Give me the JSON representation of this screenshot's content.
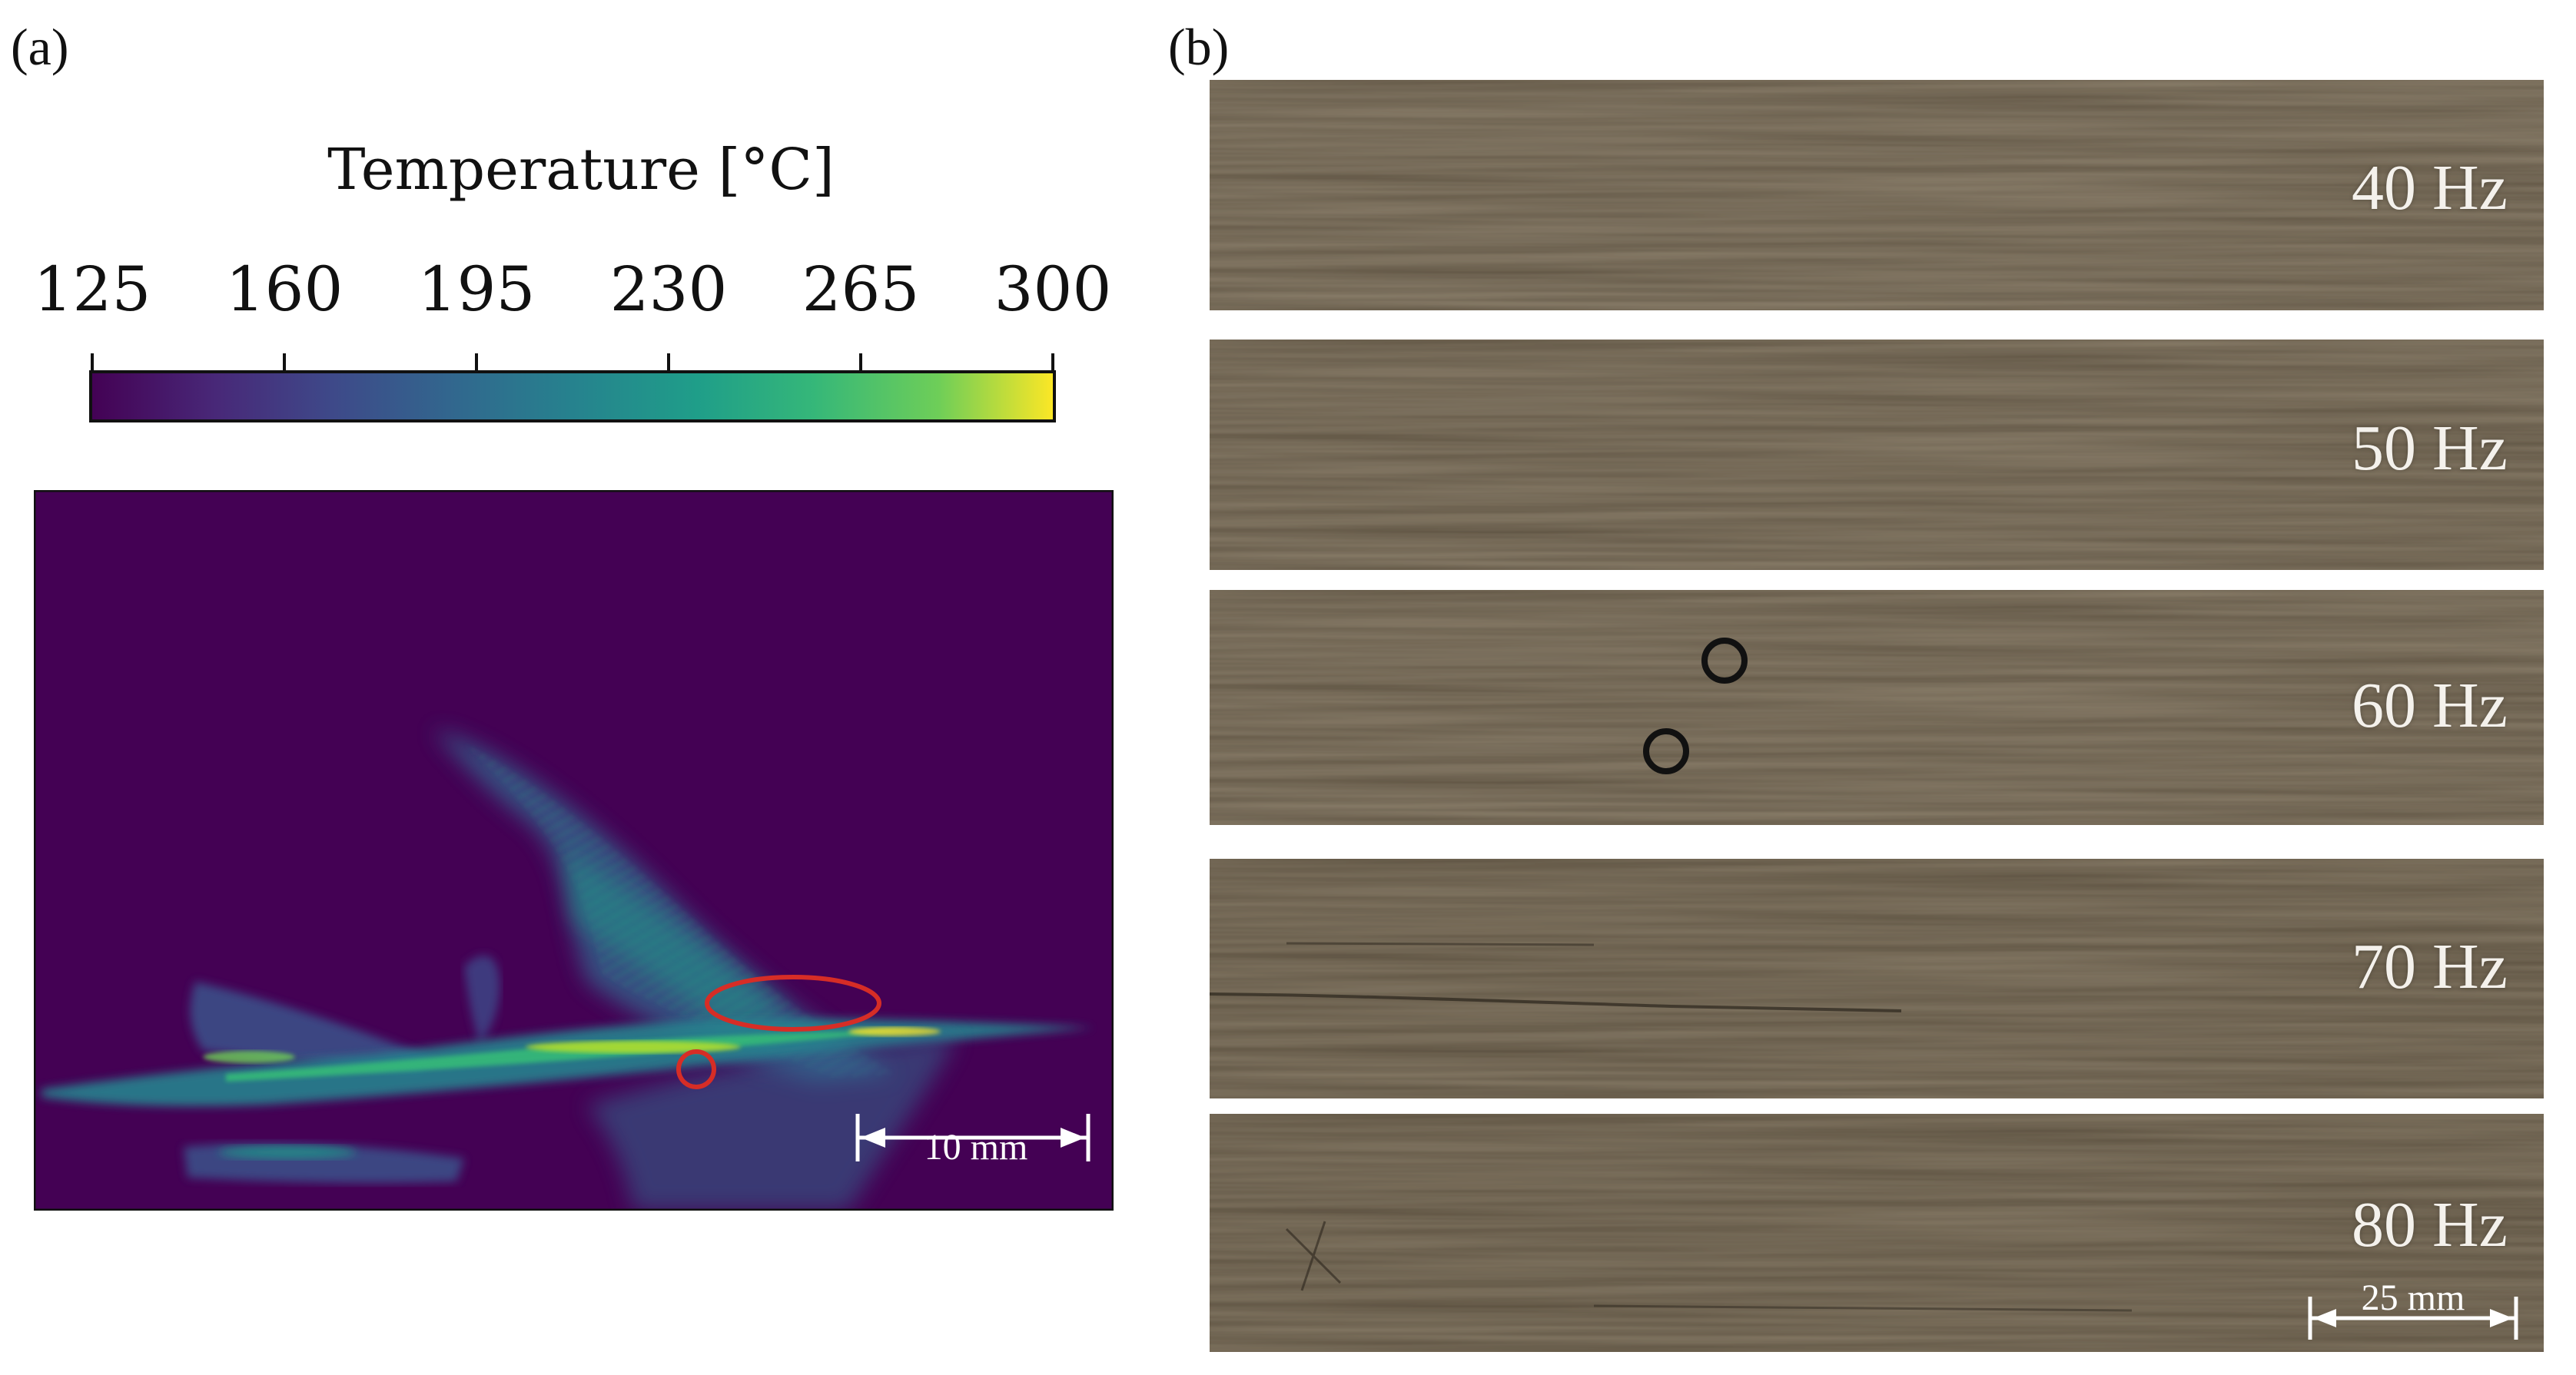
{
  "panel_a": {
    "label": "(a)",
    "colorbar": {
      "title": "Temperature [°C]",
      "ticks": [
        "125",
        "160",
        "195",
        "230",
        "265",
        "300"
      ],
      "colormap": [
        "#440154",
        "#3b528b",
        "#21918c",
        "#27ad81",
        "#5ec962",
        "#fde725"
      ]
    },
    "thermal_image": {
      "background_color": "#440154",
      "annotation_color": "#d62d26",
      "scale_bar_label": "10 mm"
    }
  },
  "panel_b": {
    "label": "(b)",
    "strips": [
      {
        "label": "40 Hz"
      },
      {
        "label": "50 Hz"
      },
      {
        "label": "60 Hz"
      },
      {
        "label": "70 Hz"
      },
      {
        "label": "80 Hz"
      }
    ],
    "scale_bar_label": "25 mm",
    "marker_color": "#111111"
  }
}
